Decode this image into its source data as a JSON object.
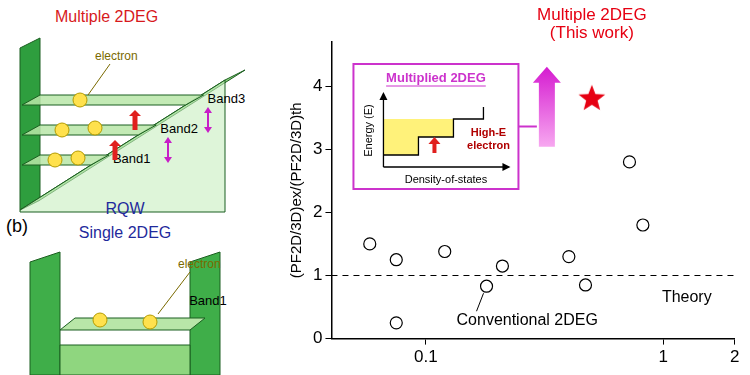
{
  "chart_data": {
    "type": "scatter",
    "y_label": "(PF2D/3D)ex/(PF2D/3D)th",
    "series": [
      {
        "name": "Conventional 2DEG",
        "color": "#000000",
        "marker": "circle",
        "x": [
          0.058,
          0.075,
          0.075,
          0.12,
          0.18,
          0.21,
          0.4,
          0.47,
          0.72,
          0.82
        ],
        "values": [
          1.5,
          1.25,
          0.25,
          1.38,
          0.83,
          1.15,
          1.3,
          0.85,
          2.8,
          1.8
        ]
      },
      {
        "name": "Multiple 2DEG (This work)",
        "color": "#e60012",
        "marker": "star",
        "x": [
          0.5
        ],
        "values": [
          3.8
        ]
      }
    ],
    "reference_line": {
      "name": "Theory",
      "value": 1,
      "color": "#000000",
      "line_style": "dashed"
    },
    "inset": {
      "title": "Multiplied 2DEG",
      "y_label": "Energy (E)",
      "x_label": "Density-of-states",
      "annotation": "High-E electron",
      "color": "#cc33cc"
    },
    "xlim": [
      0.04,
      2
    ],
    "xticks": [
      0.1,
      1,
      2
    ],
    "ylim": [
      0,
      4.7
    ],
    "yticks": [
      0,
      1,
      2,
      3,
      4
    ],
    "log": "x",
    "grid": false
  },
  "diagram": {
    "panel_a": {
      "title": "Multiple 2DEG",
      "electron": "electron",
      "bands": [
        "Band3",
        "Band2",
        "Band1"
      ]
    },
    "panel_b": {
      "label": "(b)",
      "title": [
        "RQW",
        "Single 2DEG"
      ],
      "electron": "electron",
      "band": "Band1"
    }
  }
}
